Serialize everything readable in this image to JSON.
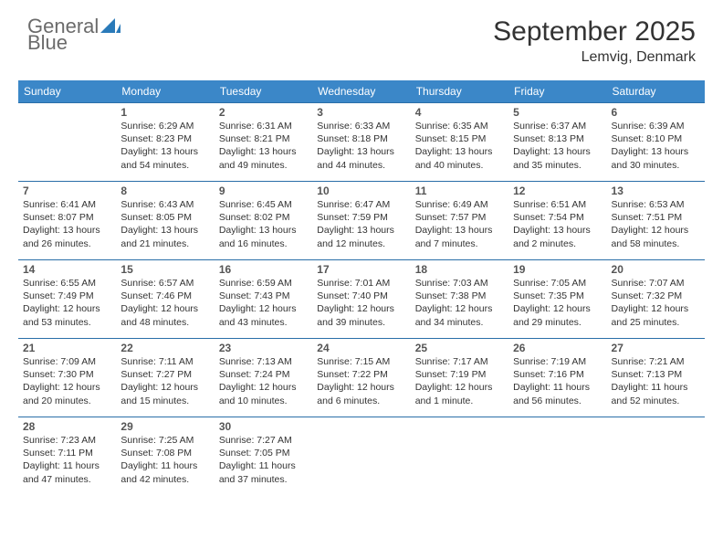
{
  "logo": {
    "word1": "General",
    "word2": "Blue"
  },
  "title": "September 2025",
  "location": "Lemvig, Denmark",
  "colors": {
    "header_bg": "#3b87c8",
    "header_text": "#ffffff",
    "row_border": "#2a6ea8",
    "text": "#333333",
    "logo_gray": "#6b6b6b",
    "logo_blue": "#2a7ab9"
  },
  "daysOfWeek": [
    "Sunday",
    "Monday",
    "Tuesday",
    "Wednesday",
    "Thursday",
    "Friday",
    "Saturday"
  ],
  "weeks": [
    [
      null,
      {
        "n": "1",
        "sr": "Sunrise: 6:29 AM",
        "ss": "Sunset: 8:23 PM",
        "dl": "Daylight: 13 hours and 54 minutes."
      },
      {
        "n": "2",
        "sr": "Sunrise: 6:31 AM",
        "ss": "Sunset: 8:21 PM",
        "dl": "Daylight: 13 hours and 49 minutes."
      },
      {
        "n": "3",
        "sr": "Sunrise: 6:33 AM",
        "ss": "Sunset: 8:18 PM",
        "dl": "Daylight: 13 hours and 44 minutes."
      },
      {
        "n": "4",
        "sr": "Sunrise: 6:35 AM",
        "ss": "Sunset: 8:15 PM",
        "dl": "Daylight: 13 hours and 40 minutes."
      },
      {
        "n": "5",
        "sr": "Sunrise: 6:37 AM",
        "ss": "Sunset: 8:13 PM",
        "dl": "Daylight: 13 hours and 35 minutes."
      },
      {
        "n": "6",
        "sr": "Sunrise: 6:39 AM",
        "ss": "Sunset: 8:10 PM",
        "dl": "Daylight: 13 hours and 30 minutes."
      }
    ],
    [
      {
        "n": "7",
        "sr": "Sunrise: 6:41 AM",
        "ss": "Sunset: 8:07 PM",
        "dl": "Daylight: 13 hours and 26 minutes."
      },
      {
        "n": "8",
        "sr": "Sunrise: 6:43 AM",
        "ss": "Sunset: 8:05 PM",
        "dl": "Daylight: 13 hours and 21 minutes."
      },
      {
        "n": "9",
        "sr": "Sunrise: 6:45 AM",
        "ss": "Sunset: 8:02 PM",
        "dl": "Daylight: 13 hours and 16 minutes."
      },
      {
        "n": "10",
        "sr": "Sunrise: 6:47 AM",
        "ss": "Sunset: 7:59 PM",
        "dl": "Daylight: 13 hours and 12 minutes."
      },
      {
        "n": "11",
        "sr": "Sunrise: 6:49 AM",
        "ss": "Sunset: 7:57 PM",
        "dl": "Daylight: 13 hours and 7 minutes."
      },
      {
        "n": "12",
        "sr": "Sunrise: 6:51 AM",
        "ss": "Sunset: 7:54 PM",
        "dl": "Daylight: 13 hours and 2 minutes."
      },
      {
        "n": "13",
        "sr": "Sunrise: 6:53 AM",
        "ss": "Sunset: 7:51 PM",
        "dl": "Daylight: 12 hours and 58 minutes."
      }
    ],
    [
      {
        "n": "14",
        "sr": "Sunrise: 6:55 AM",
        "ss": "Sunset: 7:49 PM",
        "dl": "Daylight: 12 hours and 53 minutes."
      },
      {
        "n": "15",
        "sr": "Sunrise: 6:57 AM",
        "ss": "Sunset: 7:46 PM",
        "dl": "Daylight: 12 hours and 48 minutes."
      },
      {
        "n": "16",
        "sr": "Sunrise: 6:59 AM",
        "ss": "Sunset: 7:43 PM",
        "dl": "Daylight: 12 hours and 43 minutes."
      },
      {
        "n": "17",
        "sr": "Sunrise: 7:01 AM",
        "ss": "Sunset: 7:40 PM",
        "dl": "Daylight: 12 hours and 39 minutes."
      },
      {
        "n": "18",
        "sr": "Sunrise: 7:03 AM",
        "ss": "Sunset: 7:38 PM",
        "dl": "Daylight: 12 hours and 34 minutes."
      },
      {
        "n": "19",
        "sr": "Sunrise: 7:05 AM",
        "ss": "Sunset: 7:35 PM",
        "dl": "Daylight: 12 hours and 29 minutes."
      },
      {
        "n": "20",
        "sr": "Sunrise: 7:07 AM",
        "ss": "Sunset: 7:32 PM",
        "dl": "Daylight: 12 hours and 25 minutes."
      }
    ],
    [
      {
        "n": "21",
        "sr": "Sunrise: 7:09 AM",
        "ss": "Sunset: 7:30 PM",
        "dl": "Daylight: 12 hours and 20 minutes."
      },
      {
        "n": "22",
        "sr": "Sunrise: 7:11 AM",
        "ss": "Sunset: 7:27 PM",
        "dl": "Daylight: 12 hours and 15 minutes."
      },
      {
        "n": "23",
        "sr": "Sunrise: 7:13 AM",
        "ss": "Sunset: 7:24 PM",
        "dl": "Daylight: 12 hours and 10 minutes."
      },
      {
        "n": "24",
        "sr": "Sunrise: 7:15 AM",
        "ss": "Sunset: 7:22 PM",
        "dl": "Daylight: 12 hours and 6 minutes."
      },
      {
        "n": "25",
        "sr": "Sunrise: 7:17 AM",
        "ss": "Sunset: 7:19 PM",
        "dl": "Daylight: 12 hours and 1 minute."
      },
      {
        "n": "26",
        "sr": "Sunrise: 7:19 AM",
        "ss": "Sunset: 7:16 PM",
        "dl": "Daylight: 11 hours and 56 minutes."
      },
      {
        "n": "27",
        "sr": "Sunrise: 7:21 AM",
        "ss": "Sunset: 7:13 PM",
        "dl": "Daylight: 11 hours and 52 minutes."
      }
    ],
    [
      {
        "n": "28",
        "sr": "Sunrise: 7:23 AM",
        "ss": "Sunset: 7:11 PM",
        "dl": "Daylight: 11 hours and 47 minutes."
      },
      {
        "n": "29",
        "sr": "Sunrise: 7:25 AM",
        "ss": "Sunset: 7:08 PM",
        "dl": "Daylight: 11 hours and 42 minutes."
      },
      {
        "n": "30",
        "sr": "Sunrise: 7:27 AM",
        "ss": "Sunset: 7:05 PM",
        "dl": "Daylight: 11 hours and 37 minutes."
      },
      null,
      null,
      null,
      null
    ]
  ]
}
